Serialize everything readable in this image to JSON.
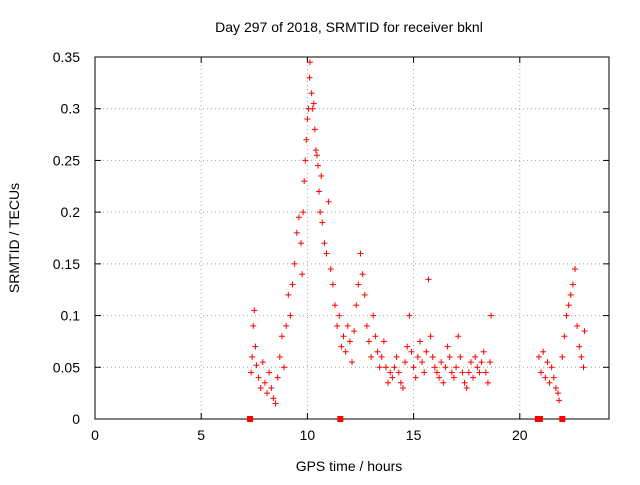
{
  "chart_data": {
    "type": "scatter",
    "title": "Day 297 of 2018, SRMTID for receiver bknl",
    "xlabel": "GPS time / hours",
    "ylabel": "SRMTID / TECUs",
    "xlim": [
      0,
      24.2
    ],
    "ylim": [
      0,
      0.35
    ],
    "x_ticks": [
      0,
      5,
      10,
      15,
      20
    ],
    "y_ticks": [
      0,
      0.05,
      0.1,
      0.15,
      0.2,
      0.25,
      0.3,
      0.35
    ],
    "x_tick_labels": [
      "0",
      "5",
      "10",
      "15",
      "20"
    ],
    "y_tick_labels": [
      "0",
      "0.05",
      "0.1",
      "0.15",
      "0.2",
      "0.25",
      "0.3",
      "0.35"
    ],
    "grid": true,
    "marker": "plus",
    "marker_color": "#ff0000",
    "series": [
      {
        "name": "SRMTID",
        "points": [
          [
            7.35,
            0.045
          ],
          [
            7.4,
            0.06
          ],
          [
            7.45,
            0.09
          ],
          [
            7.5,
            0.105
          ],
          [
            7.55,
            0.07
          ],
          [
            7.6,
            0.052
          ],
          [
            7.7,
            0.04
          ],
          [
            7.8,
            0.03
          ],
          [
            7.9,
            0.055
          ],
          [
            8.0,
            0.035
          ],
          [
            8.1,
            0.025
          ],
          [
            8.2,
            0.045
          ],
          [
            8.3,
            0.03
          ],
          [
            8.4,
            0.02
          ],
          [
            8.5,
            0.015
          ],
          [
            8.6,
            0.04
          ],
          [
            8.7,
            0.06
          ],
          [
            8.8,
            0.08
          ],
          [
            8.9,
            0.05
          ],
          [
            9.0,
            0.09
          ],
          [
            9.1,
            0.12
          ],
          [
            9.2,
            0.1
          ],
          [
            9.3,
            0.13
          ],
          [
            9.4,
            0.15
          ],
          [
            9.5,
            0.18
          ],
          [
            9.6,
            0.195
          ],
          [
            9.7,
            0.17
          ],
          [
            9.75,
            0.14
          ],
          [
            9.8,
            0.2
          ],
          [
            9.85,
            0.23
          ],
          [
            9.9,
            0.25
          ],
          [
            9.95,
            0.27
          ],
          [
            10.0,
            0.29
          ],
          [
            10.05,
            0.3
          ],
          [
            10.1,
            0.33
          ],
          [
            10.12,
            0.345
          ],
          [
            10.2,
            0.315
          ],
          [
            10.25,
            0.3
          ],
          [
            10.3,
            0.305
          ],
          [
            10.35,
            0.28
          ],
          [
            10.4,
            0.26
          ],
          [
            10.45,
            0.255
          ],
          [
            10.5,
            0.245
          ],
          [
            10.55,
            0.22
          ],
          [
            10.6,
            0.2
          ],
          [
            10.65,
            0.235
          ],
          [
            10.7,
            0.19
          ],
          [
            10.8,
            0.17
          ],
          [
            10.9,
            0.16
          ],
          [
            11.0,
            0.21
          ],
          [
            11.1,
            0.145
          ],
          [
            11.2,
            0.13
          ],
          [
            11.3,
            0.11
          ],
          [
            11.4,
            0.09
          ],
          [
            11.5,
            0.1
          ],
          [
            11.6,
            0.07
          ],
          [
            11.7,
            0.08
          ],
          [
            11.8,
            0.065
          ],
          [
            11.9,
            0.09
          ],
          [
            12.0,
            0.075
          ],
          [
            12.1,
            0.055
          ],
          [
            12.2,
            0.085
          ],
          [
            12.3,
            0.11
          ],
          [
            12.4,
            0.13
          ],
          [
            12.5,
            0.16
          ],
          [
            12.6,
            0.14
          ],
          [
            12.7,
            0.12
          ],
          [
            12.8,
            0.09
          ],
          [
            12.9,
            0.075
          ],
          [
            13.0,
            0.06
          ],
          [
            13.1,
            0.1
          ],
          [
            13.2,
            0.08
          ],
          [
            13.3,
            0.065
          ],
          [
            13.4,
            0.05
          ],
          [
            13.5,
            0.06
          ],
          [
            13.6,
            0.075
          ],
          [
            13.7,
            0.05
          ],
          [
            13.8,
            0.035
          ],
          [
            13.9,
            0.045
          ],
          [
            14.0,
            0.04
          ],
          [
            14.1,
            0.05
          ],
          [
            14.2,
            0.06
          ],
          [
            14.3,
            0.045
          ],
          [
            14.4,
            0.035
          ],
          [
            14.5,
            0.03
          ],
          [
            14.6,
            0.055
          ],
          [
            14.7,
            0.07
          ],
          [
            14.8,
            0.1
          ],
          [
            14.9,
            0.065
          ],
          [
            15.0,
            0.05
          ],
          [
            15.1,
            0.04
          ],
          [
            15.2,
            0.06
          ],
          [
            15.3,
            0.075
          ],
          [
            15.4,
            0.055
          ],
          [
            15.5,
            0.045
          ],
          [
            15.6,
            0.065
          ],
          [
            15.7,
            0.135
          ],
          [
            15.8,
            0.08
          ],
          [
            15.9,
            0.06
          ],
          [
            16.0,
            0.05
          ],
          [
            16.1,
            0.045
          ],
          [
            16.2,
            0.04
          ],
          [
            16.3,
            0.055
          ],
          [
            16.4,
            0.035
          ],
          [
            16.5,
            0.05
          ],
          [
            16.6,
            0.07
          ],
          [
            16.7,
            0.06
          ],
          [
            16.8,
            0.045
          ],
          [
            16.9,
            0.04
          ],
          [
            17.0,
            0.05
          ],
          [
            17.1,
            0.08
          ],
          [
            17.2,
            0.06
          ],
          [
            17.3,
            0.045
          ],
          [
            17.4,
            0.035
          ],
          [
            17.5,
            0.03
          ],
          [
            17.6,
            0.045
          ],
          [
            17.7,
            0.055
          ],
          [
            17.8,
            0.04
          ],
          [
            17.9,
            0.06
          ],
          [
            18.0,
            0.05
          ],
          [
            18.1,
            0.045
          ],
          [
            18.2,
            0.055
          ],
          [
            18.3,
            0.065
          ],
          [
            18.4,
            0.045
          ],
          [
            18.5,
            0.035
          ],
          [
            18.6,
            0.055
          ],
          [
            18.65,
            0.1
          ],
          [
            20.9,
            0.06
          ],
          [
            21.0,
            0.045
          ],
          [
            21.1,
            0.065
          ],
          [
            21.2,
            0.04
          ],
          [
            21.3,
            0.055
          ],
          [
            21.4,
            0.035
          ],
          [
            21.5,
            0.05
          ],
          [
            21.6,
            0.04
          ],
          [
            21.7,
            0.03
          ],
          [
            21.8,
            0.025
          ],
          [
            21.85,
            0.018
          ],
          [
            22.0,
            0.06
          ],
          [
            22.1,
            0.08
          ],
          [
            22.2,
            0.1
          ],
          [
            22.3,
            0.11
          ],
          [
            22.4,
            0.12
          ],
          [
            22.5,
            0.13
          ],
          [
            22.6,
            0.145
          ],
          [
            22.7,
            0.09
          ],
          [
            22.8,
            0.07
          ],
          [
            22.9,
            0.06
          ],
          [
            23.0,
            0.05
          ],
          [
            23.05,
            0.085
          ]
        ]
      }
    ],
    "zero_points": [
      [
        7.3,
        0
      ],
      [
        11.55,
        0
      ],
      [
        20.85,
        0
      ],
      [
        20.95,
        0
      ],
      [
        22.0,
        0
      ]
    ]
  }
}
